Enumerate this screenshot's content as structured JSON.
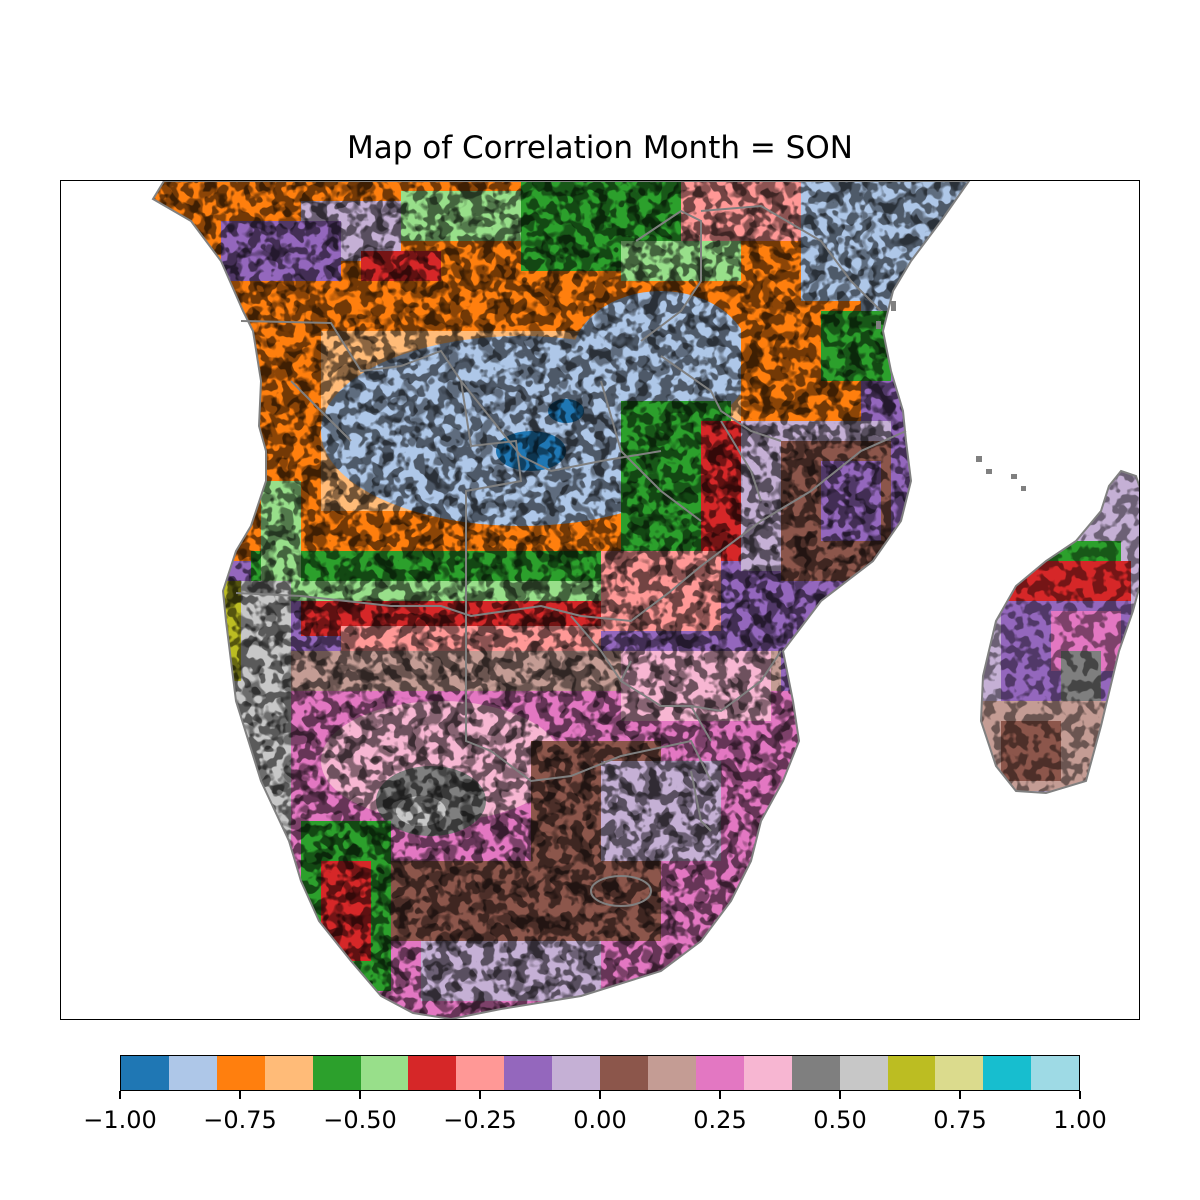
{
  "title": "Map of Correlation Month = SON",
  "colorbar": {
    "colors": [
      "#1f77b4",
      "#aec7e8",
      "#ff7f0e",
      "#ffbb78",
      "#2ca02c",
      "#98df8a",
      "#d62728",
      "#ff9896",
      "#9467bd",
      "#c5b0d5",
      "#8c564b",
      "#c49c94",
      "#e377c2",
      "#f7b6d2",
      "#7f7f7f",
      "#c7c7c7",
      "#bcbd22",
      "#dbdb8d",
      "#17becf",
      "#9edae5"
    ],
    "range": [
      -1.0,
      1.0
    ],
    "ticks": [
      "−1.00",
      "−0.75",
      "−0.50",
      "−0.25",
      "0.00",
      "0.25",
      "0.50",
      "0.75",
      "1.00"
    ]
  },
  "map": {
    "region": "Southern Africa and Madagascar",
    "border_color": "#808080",
    "bands": [
      {
        "zone": "north coast / Congo basin",
        "dominant_values": [
          -0.75,
          -0.65,
          -0.45,
          -0.35,
          -0.15,
          -0.05
        ]
      },
      {
        "zone": "central plateau (Angola, Zambia, DR Congo south)",
        "dominant_values": [
          -0.85
        ]
      },
      {
        "zone": "central pocket (Zambia)",
        "dominant_values": [
          -0.95
        ]
      },
      {
        "zone": "ring around plateau",
        "dominant_values": [
          -0.75,
          -0.65
        ]
      },
      {
        "zone": "transition belt (Namibia north, Zimbabwe, Mozambique)",
        "dominant_values": [
          -0.55,
          -0.45,
          -0.35,
          -0.25
        ]
      },
      {
        "zone": "east (Mozambique, Malawi)",
        "dominant_values": [
          -0.15,
          -0.05,
          0.05
        ]
      },
      {
        "zone": "south (Namibia, Botswana, South Africa)",
        "dominant_values": [
          0.05,
          0.15,
          0.25,
          0.35
        ]
      },
      {
        "zone": "Kalahari patch",
        "dominant_values": [
          0.45,
          0.55
        ]
      },
      {
        "zone": "Namib coast",
        "dominant_values": [
          0.65,
          0.55
        ]
      },
      {
        "zone": "Madagascar",
        "dominant_values": [
          -0.35,
          -0.15,
          0.05,
          0.15,
          0.25,
          0.45
        ]
      }
    ]
  }
}
